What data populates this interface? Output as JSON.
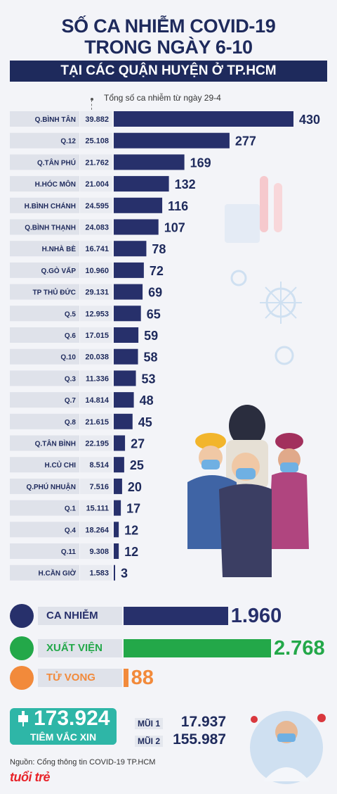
{
  "title_line1": "SỐ CA NHIỄM COVID-19",
  "title_line2": "TRONG NGÀY 6-10",
  "banner": "TẠI CÁC QUẬN HUYỆN Ở TP.HCM",
  "note": "Tổng số ca nhiễm từ ngày 29-4",
  "chart_data": {
    "type": "bar",
    "orientation": "horizontal",
    "categories": [
      "Q.BÌNH TÂN",
      "Q.12",
      "Q.TÂN PHÚ",
      "H.HÓC MÔN",
      "H.BÌNH CHÁNH",
      "Q.BÌNH THẠNH",
      "H.NHÀ BÈ",
      "Q.GÒ VẤP",
      "TP THỦ ĐỨC",
      "Q.5",
      "Q.6",
      "Q.10",
      "Q.3",
      "Q.7",
      "Q.8",
      "Q.TÂN BÌNH",
      "H.CỦ CHI",
      "Q.PHÚ NHUẬN",
      "Q.1",
      "Q.4",
      "Q.11",
      "H.CẦN GIỜ"
    ],
    "totals": [
      "39.882",
      "25.108",
      "21.762",
      "21.004",
      "24.595",
      "24.083",
      "16.741",
      "10.960",
      "29.131",
      "12.953",
      "17.015",
      "20.038",
      "11.336",
      "14.814",
      "21.615",
      "22.195",
      "8.514",
      "7.516",
      "15.111",
      "18.264",
      "9.308",
      "1.583"
    ],
    "values": [
      430,
      277,
      169,
      132,
      116,
      107,
      78,
      72,
      69,
      65,
      59,
      58,
      53,
      48,
      45,
      27,
      25,
      20,
      17,
      12,
      12,
      3
    ],
    "bar_color": "#27306b"
  },
  "summary": [
    {
      "label": "CA NHIỄM",
      "value": "1.960",
      "number": 1960,
      "color": "#27306b",
      "icon": "head-icon"
    },
    {
      "label": "XUẤT VIỆN",
      "value": "2.768",
      "number": 2768,
      "color": "#23a849",
      "icon": "heart-icon"
    },
    {
      "label": "TỬ VONG",
      "value": "88",
      "number": 88,
      "color": "#f28a3b",
      "icon": "bed-icon"
    }
  ],
  "vaccine": {
    "total": "173.924",
    "label": "TIÊM VẮC XIN",
    "dose1_label": "MŨI 1",
    "dose1_value": "17.937",
    "dose2_label": "MŨI 2",
    "dose2_value": "155.987"
  },
  "source": "Nguồn: Cổng thông tin COVID-19 TP.HCM",
  "logo": "tuổi trẻ"
}
